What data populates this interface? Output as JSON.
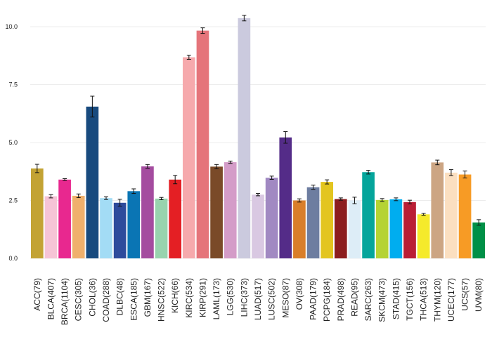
{
  "chart_data": {
    "type": "bar",
    "title": "",
    "xlabel": "",
    "ylabel": "",
    "ylim": [
      0,
      11
    ],
    "yticks": [
      "0.0",
      "2.5",
      "5.0",
      "7.5",
      "10.0"
    ],
    "yticks_values": [
      0,
      2.5,
      5,
      7.5,
      10
    ],
    "grid": true,
    "error_bars": true,
    "categories": [
      "ACC(79)",
      "BLCA(407)",
      "BRCA(1104)",
      "CESC(305)",
      "CHOL(36)",
      "COAD(288)",
      "DLBC(48)",
      "ESCA(185)",
      "GBM(167)",
      "HNSC(522)",
      "KICH(66)",
      "KIRC(534)",
      "KIRP(291)",
      "LAML(173)",
      "LGG(530)",
      "LIHC(373)",
      "LUAD(517)",
      "LUSC(502)",
      "MESO(87)",
      "OV(308)",
      "PAAD(179)",
      "PCPG(184)",
      "PRAD(498)",
      "READ(95)",
      "SARC(263)",
      "SKCM(473)",
      "STAD(415)",
      "TGCT(156)",
      "THCA(513)",
      "THYM(120)",
      "UCEC(177)",
      "UCS(57)",
      "UVM(80)"
    ],
    "values": [
      3.88,
      2.68,
      3.4,
      2.7,
      6.55,
      2.6,
      2.4,
      2.9,
      3.97,
      2.58,
      3.4,
      8.68,
      9.83,
      3.96,
      4.15,
      10.37,
      2.75,
      3.48,
      5.22,
      2.5,
      3.07,
      3.3,
      2.56,
      2.5,
      3.72,
      2.52,
      2.55,
      2.43,
      1.9,
      4.14,
      3.7,
      3.62,
      1.55
    ],
    "errors": [
      0.18,
      0.07,
      0.04,
      0.08,
      0.45,
      0.06,
      0.15,
      0.1,
      0.08,
      0.05,
      0.18,
      0.09,
      0.12,
      0.09,
      0.05,
      0.12,
      0.05,
      0.07,
      0.25,
      0.07,
      0.09,
      0.09,
      0.05,
      0.14,
      0.08,
      0.06,
      0.06,
      0.08,
      0.04,
      0.1,
      0.13,
      0.15,
      0.12
    ],
    "colors": [
      "#c3a334",
      "#f6c4d6",
      "#e8288f",
      "#f0b06c",
      "#184a7e",
      "#a3dcf5",
      "#2e4b9c",
      "#0a75b4",
      "#a44c9f",
      "#98d3ae",
      "#e41f24",
      "#f6a9ac",
      "#e5747a",
      "#7a4a28",
      "#d49cc8",
      "#cbcade",
      "#d9c8e2",
      "#a189c2",
      "#542c88",
      "#d97e2a",
      "#6d7da0",
      "#e3c51f",
      "#8c1d1e",
      "#ddedf7",
      "#05a59b",
      "#b5d334",
      "#00adef",
      "#ba1e35",
      "#f5ea2b",
      "#cca583",
      "#fbdfc0",
      "#f79b25",
      "#009047"
    ]
  }
}
